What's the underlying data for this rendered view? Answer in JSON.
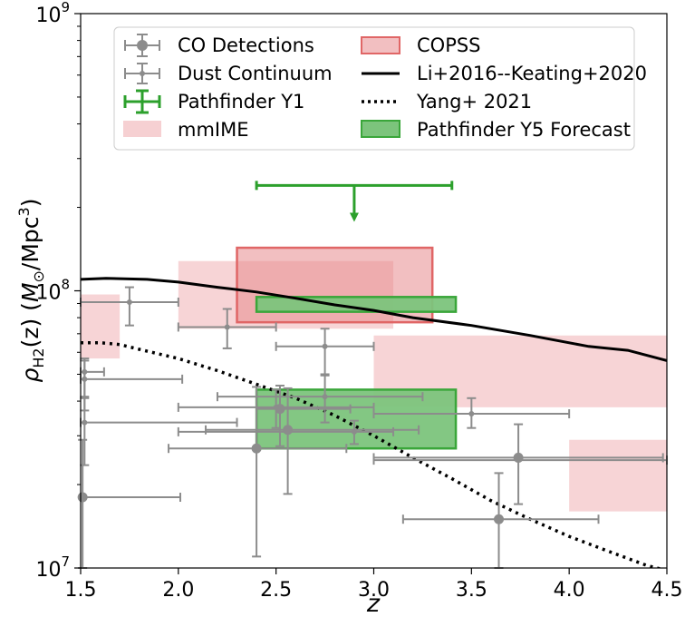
{
  "chart_data": {
    "type": "scatter",
    "xlabel": "z",
    "ylabel_parts": {
      "rho": "ρ",
      "sub": "H2",
      "arg": "(z) (",
      "msym": "M",
      "msun": "⊙",
      "unit": "/Mpc",
      "exp": "3",
      "close": ")"
    },
    "xlim": [
      1.5,
      4.5
    ],
    "ylim": [
      10000000,
      1000000000
    ],
    "yscale": "log",
    "x_ticks": [
      {
        "value": 1.5,
        "label": "1.5"
      },
      {
        "value": 2.0,
        "label": "2.0"
      },
      {
        "value": 2.5,
        "label": "2.5"
      },
      {
        "value": 3.0,
        "label": "3.0"
      },
      {
        "value": 3.5,
        "label": "3.5"
      },
      {
        "value": 4.0,
        "label": "4.0"
      },
      {
        "value": 4.5,
        "label": "4.5"
      }
    ],
    "y_ticks": [
      {
        "value": 10000000,
        "base": "10",
        "exp": "7"
      },
      {
        "value": 100000000,
        "base": "10",
        "exp": "8"
      },
      {
        "value": 1000000000,
        "base": "10",
        "exp": "9"
      }
    ],
    "grid": false,
    "legend_position": "top",
    "colors": {
      "detections": "#8c8c8c",
      "pathfinder": "#2ca02c",
      "mmime_fill": "#f0b0b4",
      "copss_fill": "#e88a8e",
      "copss_edge": "#e06666",
      "forecast_fill": "#7cc47c",
      "forecast_edge": "#3aa63a",
      "model": "#000000"
    },
    "legend": {
      "co_detections": "CO Detections",
      "dust_continuum": "Dust Continuum",
      "pathfinder_y1": "Pathfinder Y1",
      "mmime": "mmIME",
      "copss": "COPSS",
      "li_keating": "Li+2016--Keating+2020",
      "yang": "Yang+ 2021",
      "forecast": "Pathfinder Y5 Forecast"
    },
    "co_detections": [
      {
        "x": 1.51,
        "y": 18000000,
        "xerr": [
          0.01,
          0.5
        ],
        "yerr": [
          8000000,
          11000000
        ]
      },
      {
        "x": 2.4,
        "y": 27000000,
        "xerr": [
          0.45,
          0.46
        ],
        "yerr": [
          16000000,
          18000000
        ]
      },
      {
        "x": 2.52,
        "y": 37500000,
        "xerr": [
          0.12,
          0.36
        ],
        "yerr": [
          10000000,
          8000000
        ]
      },
      {
        "x": 2.56,
        "y": 31500000,
        "xerr": [
          0.42,
          0.67
        ],
        "yerr": [
          13000000,
          13000000
        ]
      },
      {
        "x": 3.64,
        "y": 15000000,
        "xerr": [
          0.49,
          0.51
        ],
        "yerr": [
          5000000,
          7000000
        ]
      },
      {
        "x": 3.74,
        "y": 25000000,
        "xerr": [
          0.74,
          0.74
        ],
        "yerr": [
          8000000,
          8000000
        ]
      }
    ],
    "dust_continuum": [
      {
        "x": 1.75,
        "y": 91000000,
        "xerr": [
          0.25,
          0.25
        ],
        "yerr": [
          16000000,
          12000000
        ]
      },
      {
        "x": 1.52,
        "y": 48000000,
        "xerr": [
          0.02,
          0.5
        ],
        "yerr": [
          11000000,
          8000000
        ]
      },
      {
        "x": 1.52,
        "y": 33500000,
        "xerr": [
          0.02,
          0.78
        ],
        "yerr": [
          10000000,
          8000000
        ]
      },
      {
        "x": 1.52,
        "y": 51000000,
        "xerr": [
          0.02,
          0.1
        ],
        "yerr": [
          10000000,
          6000000
        ]
      },
      {
        "x": 2.25,
        "y": 74000000,
        "xerr": [
          0.25,
          0.25
        ],
        "yerr": [
          12000000,
          12000000
        ]
      },
      {
        "x": 2.75,
        "y": 63000000,
        "xerr": [
          0.25,
          0.25
        ],
        "yerr": [
          13000000,
          10000000
        ]
      },
      {
        "x": 2.5,
        "y": 38000000,
        "xerr": [
          0.5,
          0.5
        ],
        "yerr": [
          6000000,
          6000000
        ]
      },
      {
        "x": 2.75,
        "y": 41500000,
        "xerr": [
          0.55,
          0.5
        ],
        "yerr": [
          8000000,
          8000000
        ]
      },
      {
        "x": 3.0,
        "y": 24500000,
        "xerr": [
          0.0,
          1.5
        ],
        "yerr": [
          0,
          0
        ]
      },
      {
        "x": 3.5,
        "y": 36000000,
        "xerr": [
          0.5,
          0.5
        ],
        "yerr": [
          4000000,
          5000000
        ]
      },
      {
        "x": 2.9,
        "y": 31000000,
        "xerr": [
          0.9,
          0.2
        ],
        "yerr": [
          3000000,
          3000000
        ]
      }
    ],
    "pathfinder_y1": {
      "x": 2.9,
      "y": 240000000,
      "xerr": [
        0.5,
        0.5
      ],
      "upper_limit": true,
      "arrow_to": 180000000
    },
    "mmime": [
      {
        "x0": 1.5,
        "x1": 1.7,
        "y0": 57000000,
        "y1": 97000000
      },
      {
        "x0": 2.0,
        "x1": 3.1,
        "y0": 73000000,
        "y1": 128000000
      },
      {
        "x0": 3.0,
        "x1": 4.5,
        "y0": 38000000,
        "y1": 69000000
      },
      {
        "x0": 4.0,
        "x1": 4.5,
        "y0": 16000000,
        "y1": 29000000
      }
    ],
    "copss": [
      {
        "x0": 2.3,
        "x1": 3.3,
        "y0": 77000000,
        "y1": 143000000
      }
    ],
    "forecast": [
      {
        "x0": 2.4,
        "x1": 3.42,
        "y0": 84000000,
        "y1": 95000000
      },
      {
        "x0": 2.4,
        "x1": 3.42,
        "y0": 27000000,
        "y1": 44000000
      }
    ],
    "li_keating": {
      "x": [
        1.5,
        1.63,
        1.84,
        2.0,
        2.2,
        2.4,
        2.6,
        2.8,
        3.0,
        3.2,
        3.5,
        3.8,
        4.1,
        4.3,
        4.5
      ],
      "y": [
        110000000,
        111000000,
        110000000,
        107500000,
        103000000,
        99000000,
        94000000,
        89000000,
        85000000,
        80000000,
        75000000,
        69000000,
        63000000,
        61000000,
        56000000
      ]
    },
    "yang": {
      "x": [
        1.5,
        1.6,
        1.7,
        1.8,
        2.0,
        2.2,
        2.4,
        2.6,
        2.8,
        3.0,
        3.2,
        3.4,
        3.6,
        3.8,
        4.0,
        4.2,
        4.4,
        4.5
      ],
      "y": [
        65000000,
        65000000,
        64000000,
        61500000,
        57000000,
        51500000,
        46000000,
        41000000,
        35500000,
        30000000,
        25000000,
        21000000,
        17500000,
        15000000,
        13000000,
        11500000,
        10200000,
        9800000
      ]
    }
  }
}
